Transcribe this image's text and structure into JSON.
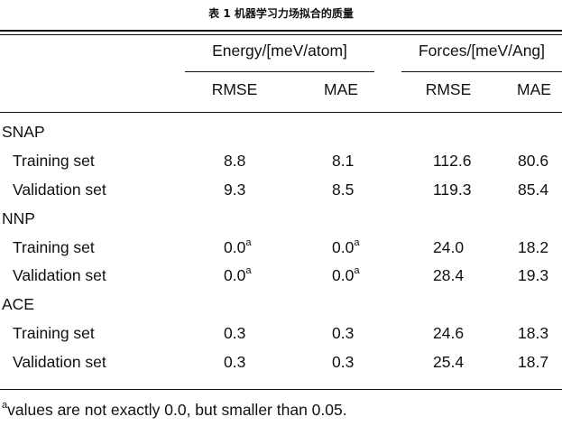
{
  "caption": "表 1 机器学习力场拟合的质量",
  "header": {
    "group1": "Energy/[meV/atom]",
    "group2": "Forces/[meV/Ang]",
    "sub": [
      "RMSE",
      "MAE",
      "RMSE",
      "MAE"
    ]
  },
  "groups": [
    {
      "name": "SNAP",
      "rows": [
        {
          "label": "Training set",
          "e_rmse": "8.8",
          "e_mae": "8.1",
          "f_rmse": "112.6",
          "f_mae": "80.6"
        },
        {
          "label": "Validation set",
          "e_rmse": "9.3",
          "e_mae": "8.5",
          "f_rmse": "119.3",
          "f_mae": "85.4"
        }
      ]
    },
    {
      "name": "NNP",
      "rows": [
        {
          "label": "Training set",
          "e_rmse": "0.0",
          "e_rmse_sup": "a",
          "e_mae": "0.0",
          "e_mae_sup": "a",
          "f_rmse": "24.0",
          "f_mae": "18.2"
        },
        {
          "label": "Validation set",
          "e_rmse": "0.0",
          "e_rmse_sup": "a",
          "e_mae": "0.0",
          "e_mae_sup": "a",
          "f_rmse": "28.4",
          "f_mae": "19.3"
        }
      ]
    },
    {
      "name": "ACE",
      "rows": [
        {
          "label": "Training set",
          "e_rmse": "0.3",
          "e_mae": "0.3",
          "f_rmse": "24.6",
          "f_mae": "18.3"
        },
        {
          "label": "Validation set",
          "e_rmse": "0.3",
          "e_mae": "0.3",
          "f_rmse": "25.4",
          "f_mae": "18.7"
        }
      ]
    }
  ],
  "footnote": {
    "mark": "a",
    "text": "values are not exactly 0.0, but smaller than 0.05."
  }
}
